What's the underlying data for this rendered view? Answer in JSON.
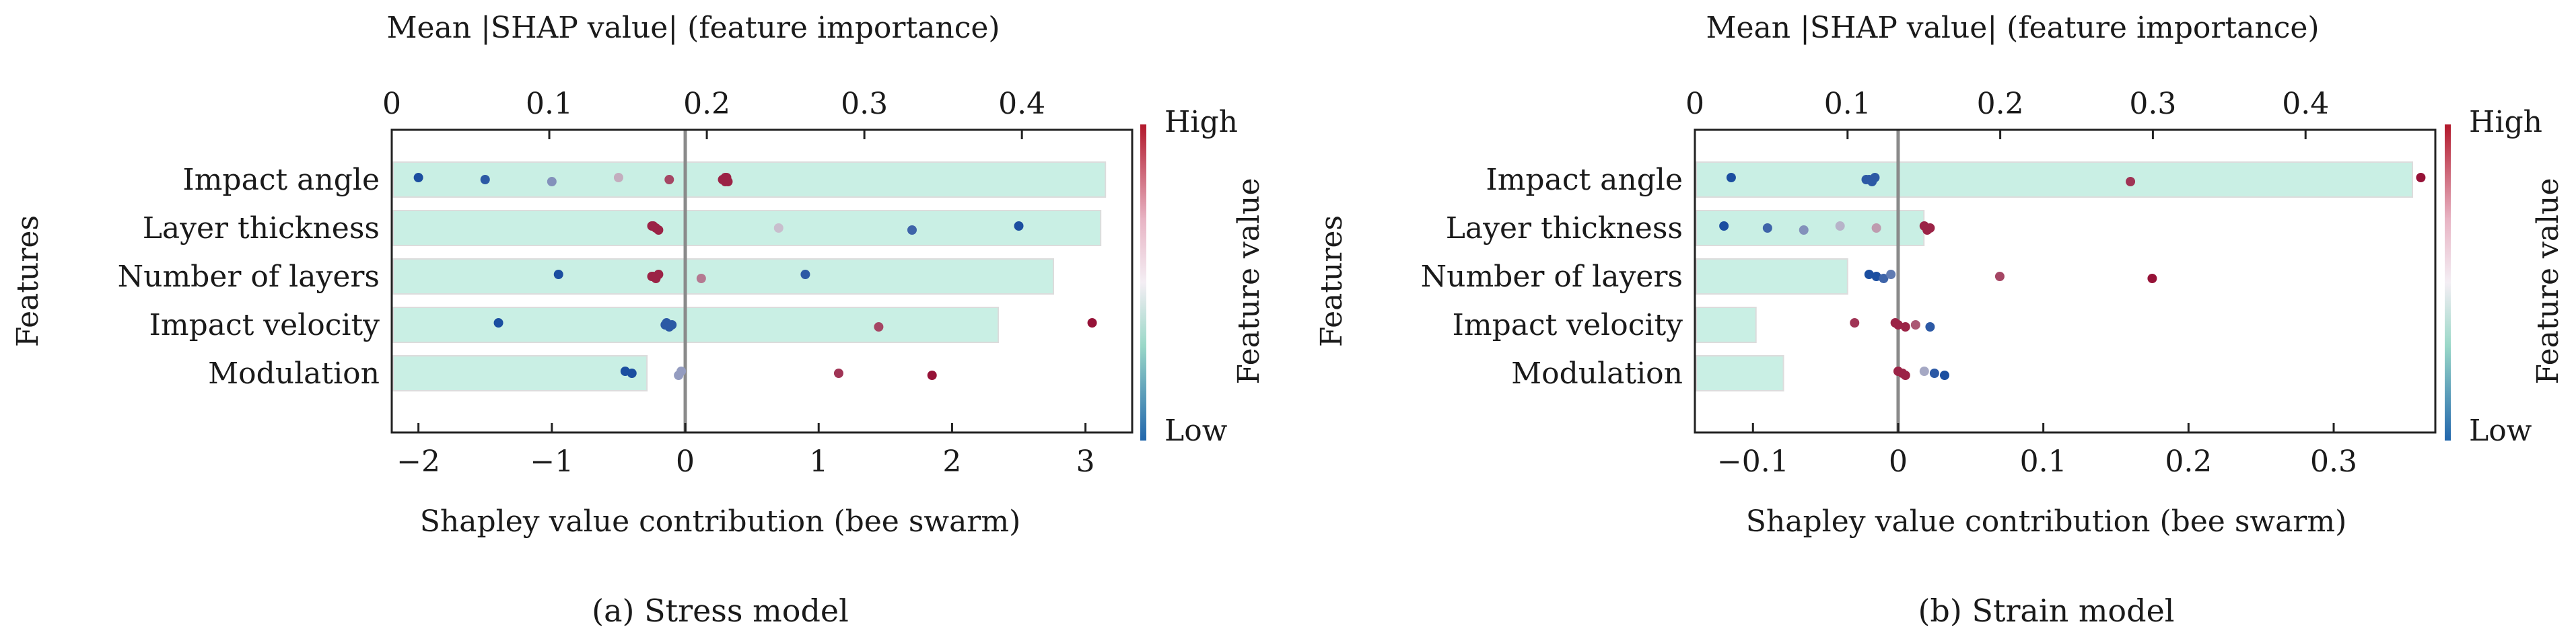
{
  "chart_data": [
    {
      "type": "scatter",
      "caption": "(a) Stress model",
      "ylabel": "Features",
      "xlabel": "Shapley value contribution (bee swarm)",
      "top_xlabel": "Mean |SHAP value| (feature importance)",
      "colorbar": {
        "label": "Feature value",
        "high": "High",
        "low": "Low"
      },
      "features": [
        "Impact angle",
        "Layer thickness",
        "Number of layers",
        "Impact velocity",
        "Modulation"
      ],
      "bottom_axis": {
        "min": -2.2,
        "max": 3.35,
        "ticks": [
          -2,
          -1,
          0,
          1,
          2,
          3
        ],
        "tick_labels": [
          "−2",
          "−1",
          "0",
          "1",
          "2",
          "3"
        ]
      },
      "top_axis": {
        "min": 0,
        "max": 0.47,
        "ticks": [
          0,
          0.1,
          0.2,
          0.3,
          0.4
        ],
        "tick_labels": [
          "0",
          "0.1",
          "0.2",
          "0.3",
          "0.4"
        ]
      },
      "importance": [
        0.453,
        0.45,
        0.42,
        0.385,
        0.162
      ],
      "shap_points": [
        [
          [
            -2.0,
            0.0
          ],
          [
            -1.5,
            0.05
          ],
          [
            -1.0,
            0.3
          ],
          [
            -0.5,
            0.55
          ],
          [
            -0.12,
            0.85
          ],
          [
            0.3,
            0.95
          ],
          [
            0.3,
            0.95
          ],
          [
            0.28,
            0.95
          ],
          [
            0.32,
            0.95
          ],
          [
            0.31,
            0.95
          ]
        ],
        [
          [
            -0.25,
            0.95
          ],
          [
            -0.22,
            0.95
          ],
          [
            -0.2,
            0.95
          ],
          [
            -0.24,
            0.95
          ],
          [
            0.7,
            0.5
          ],
          [
            1.7,
            0.1
          ],
          [
            2.5,
            0.0
          ]
        ],
        [
          [
            -0.95,
            0.0
          ],
          [
            -0.25,
            0.95
          ],
          [
            -0.22,
            0.95
          ],
          [
            -0.2,
            0.95
          ],
          [
            -0.24,
            0.95
          ],
          [
            0.12,
            0.7
          ],
          [
            0.9,
            0.05
          ]
        ],
        [
          [
            -1.4,
            0.0
          ],
          [
            -0.15,
            0.05
          ],
          [
            -0.12,
            0.05
          ],
          [
            -0.14,
            0.05
          ],
          [
            -0.1,
            0.05
          ],
          [
            1.45,
            0.85
          ],
          [
            3.05,
            1.0
          ]
        ],
        [
          [
            -0.45,
            0.0
          ],
          [
            -0.4,
            0.0
          ],
          [
            -0.05,
            0.35
          ],
          [
            -0.03,
            0.35
          ],
          [
            1.15,
            0.9
          ],
          [
            1.85,
            1.0
          ]
        ]
      ]
    },
    {
      "type": "scatter",
      "caption": "(b) Strain model",
      "ylabel": "Features",
      "xlabel": "Shapley value contribution (bee swarm)",
      "top_xlabel": "Mean |SHAP value| (feature importance)",
      "colorbar": {
        "label": "Feature value",
        "high": "High",
        "low": "Low"
      },
      "features": [
        "Impact angle",
        "Layer thickness",
        "Number of layers",
        "Impact velocity",
        "Modulation"
      ],
      "bottom_axis": {
        "min": -0.14,
        "max": 0.37,
        "ticks": [
          -0.1,
          0,
          0.1,
          0.2,
          0.3
        ],
        "tick_labels": [
          "−0.1",
          "0",
          "0.1",
          "0.2",
          "0.3"
        ]
      },
      "top_axis": {
        "min": 0,
        "max": 0.485,
        "ticks": [
          0,
          0.1,
          0.2,
          0.3,
          0.4
        ],
        "tick_labels": [
          "0",
          "0.1",
          "0.2",
          "0.3",
          "0.4"
        ]
      },
      "importance": [
        0.47,
        0.15,
        0.1,
        0.04,
        0.058
      ],
      "shap_points": [
        [
          [
            -0.115,
            0.0
          ],
          [
            -0.02,
            0.05
          ],
          [
            -0.018,
            0.05
          ],
          [
            -0.016,
            0.05
          ],
          [
            -0.022,
            0.05
          ],
          [
            0.16,
            0.9
          ],
          [
            0.36,
            1.0
          ]
        ],
        [
          [
            -0.12,
            0.0
          ],
          [
            -0.09,
            0.1
          ],
          [
            -0.065,
            0.3
          ],
          [
            -0.04,
            0.45
          ],
          [
            -0.015,
            0.6
          ],
          [
            0.02,
            0.95
          ],
          [
            0.018,
            0.95
          ],
          [
            0.022,
            0.95
          ]
        ],
        [
          [
            -0.02,
            0.0
          ],
          [
            -0.015,
            0.0
          ],
          [
            -0.01,
            0.1
          ],
          [
            -0.005,
            0.2
          ],
          [
            0.07,
            0.85
          ],
          [
            0.175,
            1.0
          ]
        ],
        [
          [
            -0.03,
            0.9
          ],
          [
            0.0,
            0.95
          ],
          [
            0.005,
            0.95
          ],
          [
            -0.002,
            0.95
          ],
          [
            0.012,
            0.8
          ],
          [
            0.022,
            0.05
          ]
        ],
        [
          [
            0.0,
            0.95
          ],
          [
            0.003,
            0.95
          ],
          [
            0.005,
            0.95
          ],
          [
            0.018,
            0.4
          ],
          [
            0.025,
            0.05
          ],
          [
            0.032,
            0.0
          ]
        ]
      ]
    }
  ]
}
